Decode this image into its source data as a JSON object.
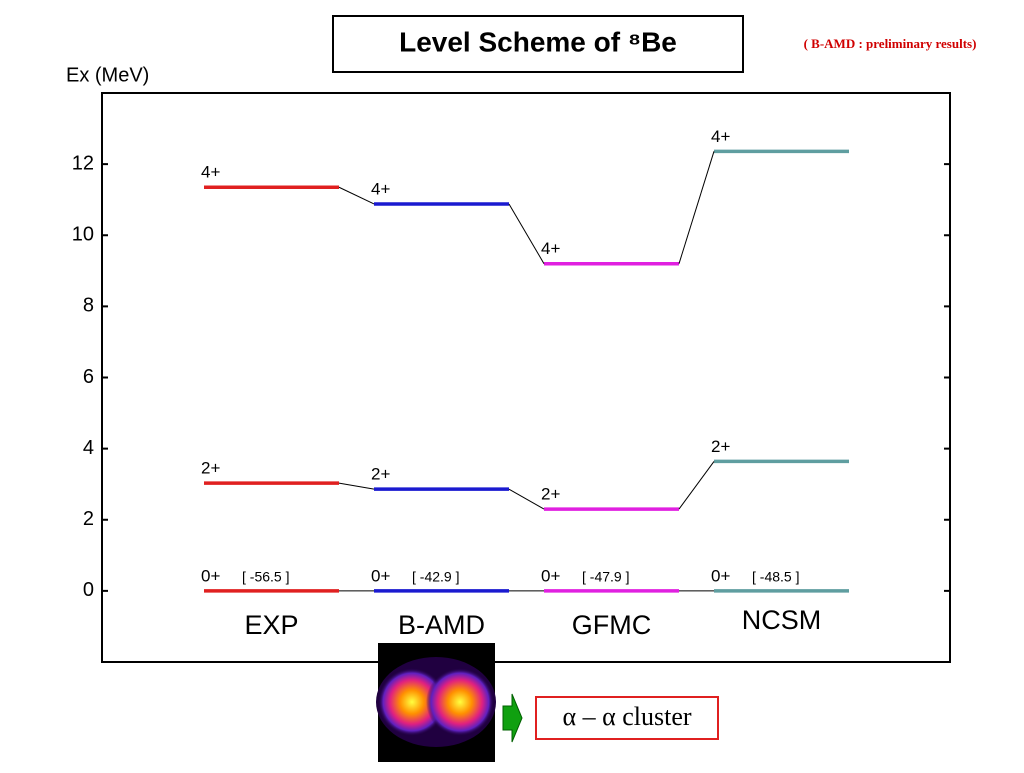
{
  "chart_data": {
    "type": "level",
    "title": "Level Scheme of ⁸Be",
    "subtitle": "( B-AMD : preliminary results)",
    "y_label": "Ex (MeV)",
    "ylim": [
      -2,
      14
    ],
    "yticks": [
      0,
      2,
      4,
      6,
      8,
      10,
      12
    ],
    "levels": [
      "0+",
      "2+",
      "4+"
    ],
    "series": [
      {
        "name": "EXP",
        "color": "#e02020",
        "values": [
          0,
          3.03,
          11.35
        ],
        "ground_label": "[ -56.5 ]"
      },
      {
        "name": "B-AMD",
        "color": "#1a1ad0",
        "values": [
          0,
          2.86,
          10.88
        ],
        "ground_label": "[ -42.9 ]"
      },
      {
        "name": "GFMC",
        "color": "#e020e0",
        "values": [
          0,
          2.3,
          9.2
        ],
        "ground_label": "[ -47.9 ]"
      },
      {
        "name": "NCSM",
        "color": "#5f9ea0",
        "values": [
          0,
          3.64,
          12.36
        ],
        "ground_label": "[ -48.5 ]"
      }
    ],
    "annotation": "α – α cluster"
  }
}
